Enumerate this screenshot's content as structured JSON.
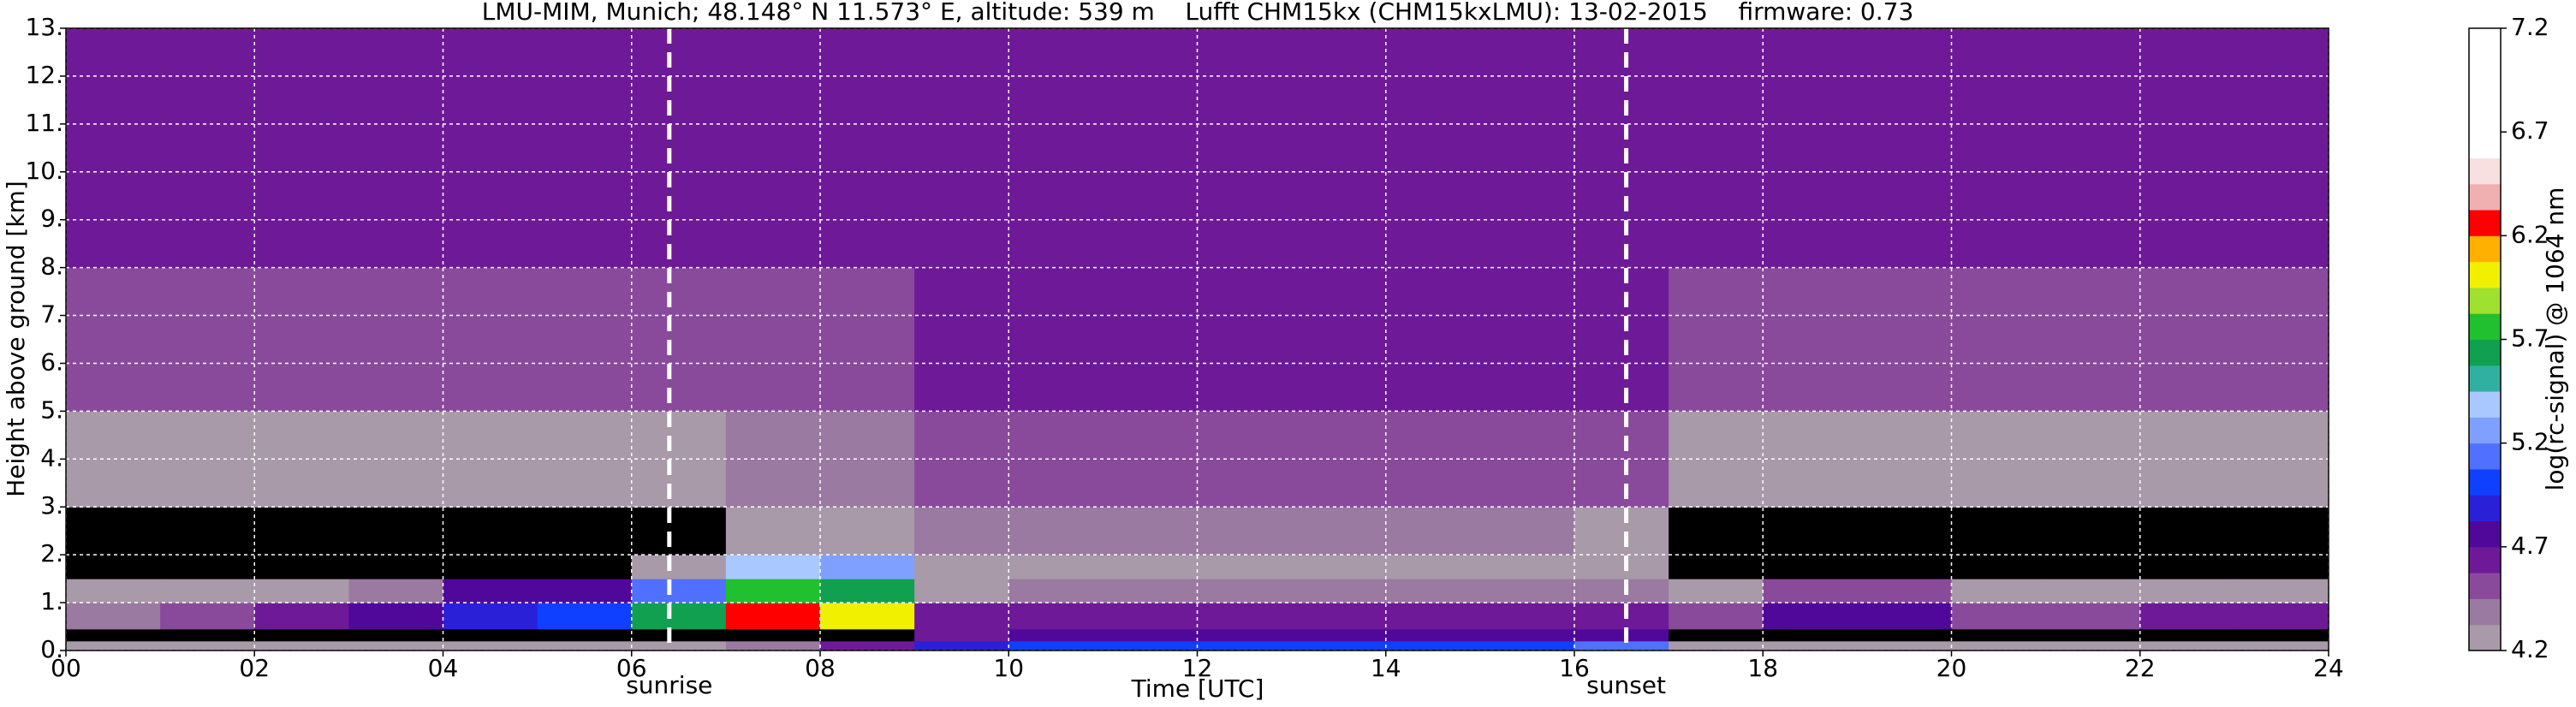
{
  "chart_data": {
    "type": "heatmap",
    "title": "LMU-MIM, Munich; 48.148° N 11.573° E, altitude: 539 m    Lufft CHM15kx (CHM15kxLMU): 13-02-2015    firmware: 0.73",
    "x_label": "Time [UTC]",
    "y_label": "Height above ground [km]",
    "colorbar_label": "log(rc-signal) @ 1064 nm",
    "xlim": [
      0,
      24
    ],
    "ylim": [
      0,
      13
    ],
    "xticks": [
      {
        "value": 0,
        "label": "00"
      },
      {
        "value": 2,
        "label": "02"
      },
      {
        "value": 4,
        "label": "04"
      },
      {
        "value": 6,
        "label": "06"
      },
      {
        "value": 8,
        "label": "08"
      },
      {
        "value": 10,
        "label": "10"
      },
      {
        "value": 12,
        "label": "12"
      },
      {
        "value": 14,
        "label": "14"
      },
      {
        "value": 16,
        "label": "16"
      },
      {
        "value": 18,
        "label": "18"
      },
      {
        "value": 20,
        "label": "20"
      },
      {
        "value": 22,
        "label": "22"
      },
      {
        "value": 24,
        "label": "24"
      }
    ],
    "yticks": [
      {
        "value": 0,
        "label": "0."
      },
      {
        "value": 1,
        "label": "1."
      },
      {
        "value": 2,
        "label": "2."
      },
      {
        "value": 3,
        "label": "3."
      },
      {
        "value": 4,
        "label": "4."
      },
      {
        "value": 5,
        "label": "5."
      },
      {
        "value": 6,
        "label": "6."
      },
      {
        "value": 7,
        "label": "7."
      },
      {
        "value": 8,
        "label": "8."
      },
      {
        "value": 9,
        "label": "9."
      },
      {
        "value": 10,
        "label": "10."
      },
      {
        "value": 11,
        "label": "11."
      },
      {
        "value": 12,
        "label": "12."
      },
      {
        "value": 13,
        "label": "13."
      }
    ],
    "grid": true,
    "zlim": [
      4.2,
      7.2
    ],
    "zticks": [
      4.2,
      4.7,
      5.2,
      5.7,
      6.2,
      6.7,
      7.2
    ],
    "under_color": "#000000",
    "colormap": [
      "#a89aa8",
      "#9a7aa0",
      "#8a4a9c",
      "#6e1a98",
      "#50089a",
      "#2a20d8",
      "#1040ff",
      "#5070ff",
      "#80a0ff",
      "#a8c8ff",
      "#30b0a0",
      "#10a050",
      "#20c030",
      "#a0e030",
      "#f0f000",
      "#ffb000",
      "#ff0000",
      "#f0b0b0",
      "#f8e0e0",
      "#ffffff",
      "#ffffff",
      "#ffffff",
      "#ffffff",
      "#ffffff"
    ],
    "annotations": [
      {
        "text": "sunrise",
        "x": 6.4
      },
      {
        "text": "sunset",
        "x": 16.55
      }
    ],
    "x_bins": [
      0,
      1,
      2,
      3,
      4,
      5,
      6,
      7,
      8,
      9,
      10,
      11,
      12,
      13,
      14,
      15,
      16,
      17,
      18,
      19,
      20,
      21,
      22,
      23,
      24
    ],
    "y_bins": [
      0,
      0.2,
      0.45,
      1.0,
      1.5,
      2.0,
      3.0,
      5.0,
      8.0,
      13.0
    ],
    "z": [
      [
        4.3,
        4.0,
        4.4,
        4.3,
        4.0,
        4.1,
        4.3,
        4.5,
        4.6
      ],
      [
        4.3,
        4.0,
        4.5,
        4.3,
        4.0,
        4.1,
        4.3,
        4.5,
        4.6
      ],
      [
        4.3,
        4.0,
        4.6,
        4.3,
        4.0,
        4.1,
        4.3,
        4.5,
        4.6
      ],
      [
        4.3,
        4.0,
        4.8,
        4.4,
        4.0,
        4.1,
        4.3,
        4.5,
        4.6
      ],
      [
        4.3,
        4.0,
        4.9,
        4.7,
        4.1,
        4.1,
        4.3,
        4.5,
        4.6
      ],
      [
        4.3,
        4.0,
        5.0,
        4.8,
        4.1,
        4.1,
        4.3,
        4.5,
        4.6
      ],
      [
        4.3,
        4.0,
        5.6,
        5.1,
        4.3,
        4.1,
        4.3,
        4.5,
        4.6
      ],
      [
        4.4,
        4.0,
        6.3,
        5.8,
        5.4,
        4.2,
        4.4,
        4.5,
        4.6
      ],
      [
        4.6,
        4.0,
        6.0,
        5.6,
        5.2,
        4.2,
        4.4,
        4.5,
        4.6
      ],
      [
        4.9,
        4.6,
        4.6,
        4.3,
        4.2,
        4.4,
        4.5,
        4.6,
        4.6
      ],
      [
        5.0,
        4.7,
        4.6,
        4.4,
        4.3,
        4.4,
        4.5,
        4.6,
        4.6
      ],
      [
        5.0,
        4.7,
        4.6,
        4.4,
        4.3,
        4.4,
        4.5,
        4.6,
        4.6
      ],
      [
        5.0,
        4.7,
        4.6,
        4.4,
        4.3,
        4.4,
        4.5,
        4.6,
        4.6
      ],
      [
        5.0,
        4.7,
        4.6,
        4.4,
        4.3,
        4.4,
        4.5,
        4.6,
        4.6
      ],
      [
        5.0,
        4.7,
        4.6,
        4.4,
        4.3,
        4.4,
        4.5,
        4.6,
        4.6
      ],
      [
        5.0,
        4.7,
        4.6,
        4.4,
        4.3,
        4.4,
        4.5,
        4.6,
        4.6
      ],
      [
        5.1,
        4.7,
        4.6,
        4.4,
        4.3,
        4.3,
        4.5,
        4.6,
        4.6
      ],
      [
        4.3,
        4.0,
        4.5,
        4.3,
        4.0,
        4.1,
        4.3,
        4.5,
        4.6
      ],
      [
        4.3,
        4.0,
        4.8,
        4.5,
        4.0,
        4.1,
        4.3,
        4.5,
        4.6
      ],
      [
        4.3,
        4.0,
        4.8,
        4.5,
        4.0,
        4.1,
        4.3,
        4.5,
        4.6
      ],
      [
        4.3,
        4.0,
        4.5,
        4.3,
        4.0,
        4.1,
        4.3,
        4.5,
        4.6
      ],
      [
        4.3,
        4.0,
        4.5,
        4.3,
        4.0,
        4.1,
        4.3,
        4.5,
        4.6
      ],
      [
        4.3,
        4.0,
        4.6,
        4.3,
        4.0,
        4.1,
        4.3,
        4.5,
        4.6
      ],
      [
        4.3,
        4.0,
        4.6,
        4.3,
        4.0,
        4.1,
        4.3,
        4.5,
        4.6
      ]
    ]
  }
}
